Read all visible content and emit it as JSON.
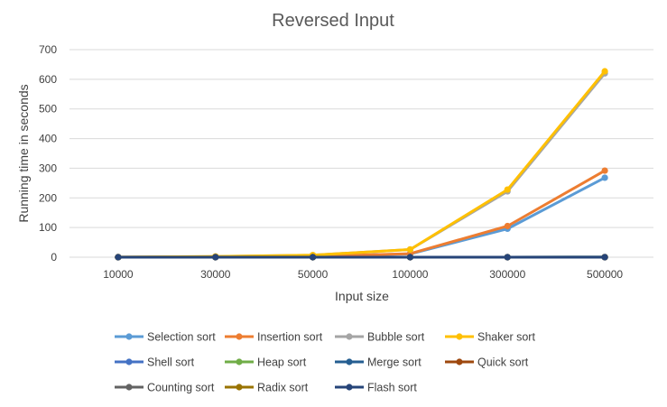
{
  "chart_data": {
    "type": "line",
    "title": "Reversed Input",
    "xlabel": "Input size",
    "ylabel": "Running time in seconds",
    "categories": [
      "10000",
      "30000",
      "50000",
      "100000",
      "300000",
      "500000"
    ],
    "ylim": [
      0,
      700
    ],
    "yticks": [
      0,
      100,
      200,
      300,
      400,
      500,
      600,
      700
    ],
    "grid": "horizontal",
    "legend_position": "bottom",
    "series": [
      {
        "name": "Selection sort",
        "color": "#5B9BD5",
        "values": [
          0.1,
          1,
          3,
          11,
          96,
          268
        ]
      },
      {
        "name": "Insertion sort",
        "color": "#ED7D31",
        "values": [
          0.1,
          1,
          3,
          12,
          105,
          292
        ]
      },
      {
        "name": "Bubble sort",
        "color": "#A5A5A5",
        "values": [
          0.3,
          2.5,
          7,
          26,
          222,
          620
        ]
      },
      {
        "name": "Shaker sort",
        "color": "#FFC000",
        "values": [
          0.3,
          2.5,
          7,
          26,
          228,
          627
        ]
      },
      {
        "name": "Shell sort",
        "color": "#4472C4",
        "values": [
          0,
          0,
          0,
          0,
          0.1,
          0.1
        ]
      },
      {
        "name": "Heap sort",
        "color": "#70AD47",
        "values": [
          0,
          0,
          0,
          0,
          0.1,
          0.2
        ]
      },
      {
        "name": "Merge sort",
        "color": "#255E91",
        "values": [
          0,
          0,
          0,
          0,
          0.1,
          0.2
        ]
      },
      {
        "name": "Quick sort",
        "color": "#9E480E",
        "values": [
          0,
          0,
          0,
          0,
          0,
          0.1
        ]
      },
      {
        "name": "Counting sort",
        "color": "#636363",
        "values": [
          0,
          0,
          0,
          0,
          0,
          0
        ]
      },
      {
        "name": "Radix sort",
        "color": "#997300",
        "values": [
          0,
          0,
          0,
          0,
          0.1,
          0.1
        ]
      },
      {
        "name": "Flash sort",
        "color": "#264478",
        "values": [
          0,
          0,
          0,
          0,
          0,
          0
        ]
      }
    ]
  }
}
